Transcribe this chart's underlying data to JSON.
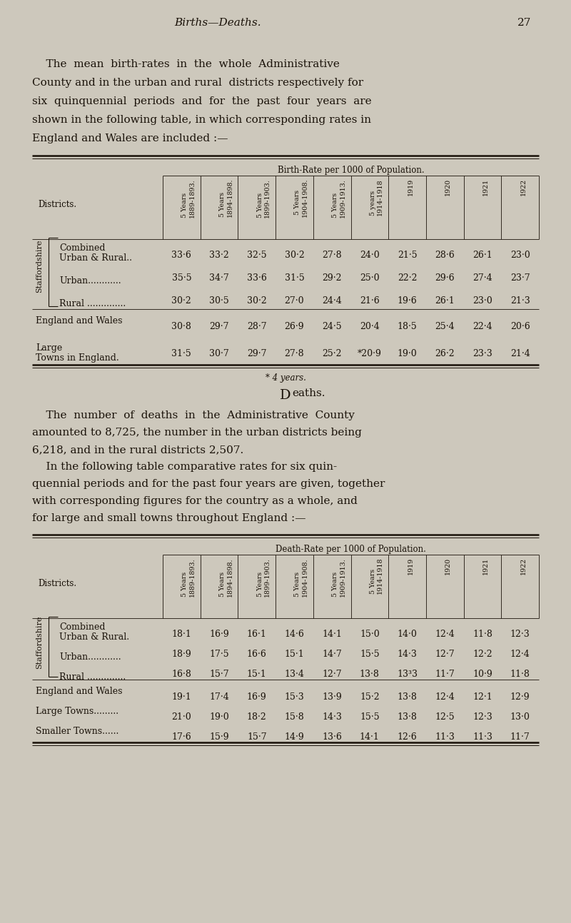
{
  "page_title": "Births—Deaths.",
  "page_number": "27",
  "bg_color": "#cdc8bc",
  "text_color": "#1a1209",
  "intro_text_lines": [
    [
      "    The  mean  birth-rates  in  the  whole  Administrative",
      false
    ],
    [
      "County and in the urban and rural  districts respectively ",
      false,
      "for",
      true
    ],
    [
      "six  quinquennial  periods  and  for  the  past  four  years ",
      false,
      "are",
      true
    ],
    [
      "shown in the following table, in which corresponding rates in",
      false
    ],
    [
      "England and Wales are included :—",
      false
    ]
  ],
  "birth_table_header": "Birth-Rate per 1000 of Population.",
  "birth_col_headers": [
    "5 Years\n1889-1893.",
    "5 Years\n1894-1898.",
    "5 Years\n1899-1903.",
    " 5 Years\n1904-1908.",
    "5 Years\n1909-1913.",
    "5 years\n1914-1918",
    "1919",
    "1920",
    "1921",
    "1922"
  ],
  "districts_label": "Districts.",
  "birth_rows": [
    {
      "label1": "Combined",
      "label2": "Urban & Rural..",
      "values": [
        "33·6",
        "33·2",
        "32·5",
        "30·2",
        "27·8",
        "24·0",
        "21·5",
        "28·6",
        "26·1",
        "23·0"
      ]
    },
    {
      "label1": "",
      "label2": "Urban............",
      "values": [
        "35·5",
        "34·7",
        "33·6",
        "31·5",
        "29·2",
        "25·0",
        "22·2",
        "29·6",
        "27·4",
        "23·7"
      ]
    },
    {
      "label1": "",
      "label2": "Rural ..............",
      "values": [
        "30·2",
        "30·5",
        "30·2",
        "27·0",
        "24·4",
        "21·6",
        "19·6",
        "26·1",
        "23·0",
        "21·3"
      ]
    }
  ],
  "birth_extra_rows": [
    {
      "label": "England and Wales",
      "values": [
        "30·8",
        "29·7",
        "28·7",
        "26·9",
        "24·5",
        "20·4",
        "18·5",
        "25·4",
        "22·4",
        "20·6"
      ]
    },
    {
      "label": "Large\nTowns in England.",
      "values": [
        "31·5",
        "30·7",
        "29·7",
        "27·8",
        "25·2",
        "*20·9",
        "19·0",
        "26·2",
        "23·3",
        "21·4"
      ]
    }
  ],
  "footnote": "* 4 years.",
  "deaths_section_title": "D",
  "deaths_section_title2": "eaths.",
  "deaths_intro_lines": [
    "    The  number  of  deaths  in  the  Administrative  County",
    "amounted to 8,725, the number in the urban districts being",
    "6,218, and in the rural districts 2,507.",
    "    In the following table comparative rates for six quin-",
    "quennial periods and for the past four years are given, together",
    "with corresponding figures for the country as a whole, and",
    "for large and small towns throughout England :—"
  ],
  "death_table_header": "Death-Rate per 1000 of Population.",
  "death_col_headers": [
    "5 Years\n1889-1893.",
    "5 Years\n1894-1898.",
    "5 Years\n1899-1903.",
    "5 Years\n1904-1908.",
    "5 Years\n1909-1913.",
    "5 Years\n1914-1918",
    "1919",
    "1920",
    "1921",
    "1922"
  ],
  "death_rows": [
    {
      "label1": "Combined",
      "label2": "Urban & Rural.",
      "values": [
        "18·1",
        "16·9",
        "16·1",
        "14·6",
        "14·1",
        "15·0",
        "14·0",
        "12·4",
        "11·8",
        "12·3"
      ]
    },
    {
      "label1": "",
      "label2": "Urban............",
      "values": [
        "18·9",
        "17·5",
        "16·6",
        "15·1",
        "14·7",
        "15·5",
        "14·3",
        "12·7",
        "12·2",
        "12·4"
      ]
    },
    {
      "label1": "",
      "label2": "Rural ..............",
      "values": [
        "16·8",
        "15·7",
        "15·1",
        "13·4",
        "12·7",
        "13·8",
        "13³3",
        "11·7",
        "10·9",
        "11·8"
      ]
    }
  ],
  "death_extra_rows": [
    {
      "label": "England and Wales",
      "values": [
        "19·1",
        "17·4",
        "16·9",
        "15·3",
        "13·9",
        "15·2",
        "13·8",
        "12·4",
        "12·1",
        "12·9"
      ]
    },
    {
      "label": "Large Towns.........",
      "values": [
        "21·0",
        "19·0",
        "18·2",
        "15·8",
        "14·3",
        "15·5",
        "13·8",
        "12·5",
        "12·3",
        "13·0"
      ]
    },
    {
      "label": "Smaller Towns......",
      "values": [
        "17·6",
        "15·9",
        "15·7",
        "14·9",
        "13·6",
        "14·1",
        "12·6",
        "11·3",
        "11·3",
        "11·7"
      ]
    }
  ]
}
